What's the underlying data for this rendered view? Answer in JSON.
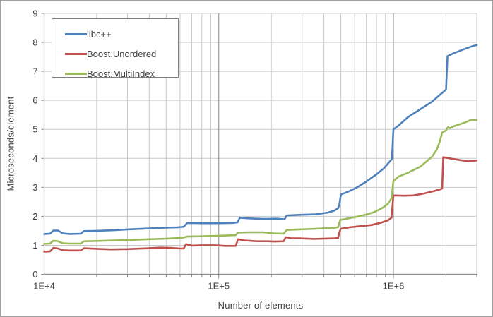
{
  "chart_data": {
    "type": "line",
    "title": "",
    "xlabel": "Number of elements",
    "ylabel": "Microseconds/element",
    "x_scale": "log",
    "xlim": [
      10000,
      3000000
    ],
    "ylim": [
      0,
      9
    ],
    "y_ticks": [
      0,
      1,
      2,
      3,
      4,
      5,
      6,
      7,
      8,
      9
    ],
    "x_ticks": [
      {
        "value": 10000,
        "label": "1E+4"
      },
      {
        "value": 100000,
        "label": "1E+5"
      },
      {
        "value": 1000000,
        "label": "1E+6"
      }
    ],
    "grid": true,
    "legend_position": "top-left",
    "style_colors": {
      "grid_minor": "#C9C9C9",
      "grid_major": "#8A8A8A",
      "axis": "#8A8A8A",
      "text": "#404040"
    },
    "series": [
      {
        "name": "libc++",
        "color": "#4F81BD",
        "points": [
          [
            10000,
            1.39
          ],
          [
            10800,
            1.4
          ],
          [
            11300,
            1.51
          ],
          [
            12000,
            1.51
          ],
          [
            12800,
            1.41
          ],
          [
            14000,
            1.39
          ],
          [
            16200,
            1.4
          ],
          [
            16900,
            1.49
          ],
          [
            20000,
            1.5
          ],
          [
            25000,
            1.52
          ],
          [
            30000,
            1.55
          ],
          [
            40000,
            1.58
          ],
          [
            50000,
            1.61
          ],
          [
            58000,
            1.62
          ],
          [
            63000,
            1.64
          ],
          [
            66000,
            1.77
          ],
          [
            80000,
            1.76
          ],
          [
            100000,
            1.76
          ],
          [
            120000,
            1.77
          ],
          [
            128000,
            1.79
          ],
          [
            132000,
            1.95
          ],
          [
            150000,
            1.93
          ],
          [
            180000,
            1.91
          ],
          [
            215000,
            1.92
          ],
          [
            238000,
            1.9
          ],
          [
            245000,
            2.03
          ],
          [
            290000,
            2.05
          ],
          [
            360000,
            2.07
          ],
          [
            420000,
            2.13
          ],
          [
            460000,
            2.2
          ],
          [
            482000,
            2.28
          ],
          [
            490000,
            2.4
          ],
          [
            500000,
            2.75
          ],
          [
            560000,
            2.87
          ],
          [
            620000,
            3.0
          ],
          [
            700000,
            3.2
          ],
          [
            800000,
            3.45
          ],
          [
            880000,
            3.65
          ],
          [
            940000,
            3.85
          ],
          [
            980000,
            3.97
          ],
          [
            1000000,
            5.0
          ],
          [
            1070000,
            5.13
          ],
          [
            1210000,
            5.42
          ],
          [
            1430000,
            5.7
          ],
          [
            1660000,
            5.95
          ],
          [
            1850000,
            6.2
          ],
          [
            2000000,
            6.37
          ],
          [
            2040000,
            7.53
          ],
          [
            2200000,
            7.62
          ],
          [
            2500000,
            7.75
          ],
          [
            2800000,
            7.86
          ],
          [
            3000000,
            7.91
          ]
        ]
      },
      {
        "name": "Boost.Unordered",
        "color": "#C0504D",
        "points": [
          [
            10000,
            0.78
          ],
          [
            10800,
            0.79
          ],
          [
            11300,
            0.91
          ],
          [
            12000,
            0.89
          ],
          [
            12800,
            0.83
          ],
          [
            14000,
            0.82
          ],
          [
            16200,
            0.82
          ],
          [
            16900,
            0.9
          ],
          [
            20000,
            0.88
          ],
          [
            24000,
            0.86
          ],
          [
            30000,
            0.87
          ],
          [
            40000,
            0.9
          ],
          [
            46000,
            0.92
          ],
          [
            53000,
            0.91
          ],
          [
            60000,
            0.89
          ],
          [
            63000,
            0.89
          ],
          [
            65000,
            1.04
          ],
          [
            70000,
            0.99
          ],
          [
            80000,
            1.0
          ],
          [
            95000,
            1.0
          ],
          [
            110000,
            0.98
          ],
          [
            125000,
            0.98
          ],
          [
            129000,
            1.21
          ],
          [
            140000,
            1.17
          ],
          [
            165000,
            1.14
          ],
          [
            190000,
            1.14
          ],
          [
            210000,
            1.13
          ],
          [
            235000,
            1.14
          ],
          [
            242000,
            1.28
          ],
          [
            260000,
            1.24
          ],
          [
            290000,
            1.24
          ],
          [
            350000,
            1.22
          ],
          [
            400000,
            1.23
          ],
          [
            460000,
            1.24
          ],
          [
            482000,
            1.25
          ],
          [
            490000,
            1.45
          ],
          [
            500000,
            1.57
          ],
          [
            560000,
            1.62
          ],
          [
            650000,
            1.66
          ],
          [
            750000,
            1.7
          ],
          [
            850000,
            1.78
          ],
          [
            930000,
            1.86
          ],
          [
            975000,
            1.95
          ],
          [
            1000000,
            2.72
          ],
          [
            1150000,
            2.71
          ],
          [
            1300000,
            2.72
          ],
          [
            1500000,
            2.79
          ],
          [
            1700000,
            2.87
          ],
          [
            1850000,
            2.93
          ],
          [
            1900000,
            2.96
          ],
          [
            1930000,
            4.04
          ],
          [
            2100000,
            4.0
          ],
          [
            2400000,
            3.94
          ],
          [
            2700000,
            3.9
          ],
          [
            3000000,
            3.93
          ]
        ]
      },
      {
        "name": "Boost.MultiIndex",
        "color": "#9BBB59",
        "points": [
          [
            10000,
            1.05
          ],
          [
            10800,
            1.06
          ],
          [
            11300,
            1.16
          ],
          [
            12000,
            1.14
          ],
          [
            12800,
            1.07
          ],
          [
            14000,
            1.06
          ],
          [
            16200,
            1.06
          ],
          [
            16900,
            1.14
          ],
          [
            20000,
            1.15
          ],
          [
            25000,
            1.17
          ],
          [
            30000,
            1.18
          ],
          [
            40000,
            1.21
          ],
          [
            50000,
            1.23
          ],
          [
            58000,
            1.25
          ],
          [
            63000,
            1.27
          ],
          [
            66000,
            1.3
          ],
          [
            80000,
            1.31
          ],
          [
            100000,
            1.33
          ],
          [
            125000,
            1.35
          ],
          [
            129000,
            1.44
          ],
          [
            150000,
            1.45
          ],
          [
            180000,
            1.45
          ],
          [
            205000,
            1.41
          ],
          [
            235000,
            1.4
          ],
          [
            245000,
            1.53
          ],
          [
            290000,
            1.55
          ],
          [
            360000,
            1.57
          ],
          [
            420000,
            1.59
          ],
          [
            470000,
            1.61
          ],
          [
            483000,
            1.63
          ],
          [
            495000,
            1.87
          ],
          [
            550000,
            1.93
          ],
          [
            620000,
            1.99
          ],
          [
            700000,
            2.06
          ],
          [
            780000,
            2.15
          ],
          [
            860000,
            2.28
          ],
          [
            930000,
            2.43
          ],
          [
            975000,
            2.62
          ],
          [
            1000000,
            3.22
          ],
          [
            1070000,
            3.37
          ],
          [
            1210000,
            3.5
          ],
          [
            1430000,
            3.72
          ],
          [
            1660000,
            4.05
          ],
          [
            1770000,
            4.3
          ],
          [
            1840000,
            4.57
          ],
          [
            1900000,
            4.89
          ],
          [
            2000000,
            4.96
          ],
          [
            2050000,
            5.07
          ],
          [
            2110000,
            5.04
          ],
          [
            2200000,
            5.1
          ],
          [
            2330000,
            5.15
          ],
          [
            2550000,
            5.23
          ],
          [
            2790000,
            5.33
          ],
          [
            3000000,
            5.32
          ]
        ]
      }
    ]
  }
}
